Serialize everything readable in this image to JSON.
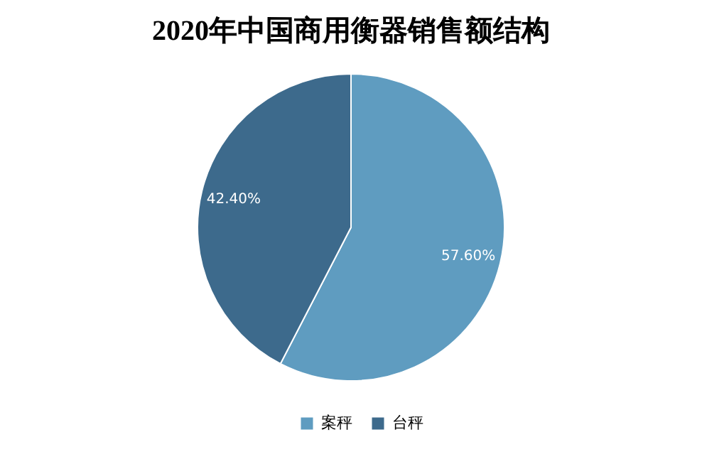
{
  "chart_data": {
    "type": "pie",
    "title": "2020年中国商用衡器销售额结构",
    "categories": [
      "案秤",
      "台秤"
    ],
    "values": [
      57.6,
      42.4
    ],
    "colors": [
      "#5f9cc0",
      "#3d6a8c"
    ],
    "value_labels": [
      "57.60%",
      "42.40%"
    ],
    "legend": "bottom"
  }
}
